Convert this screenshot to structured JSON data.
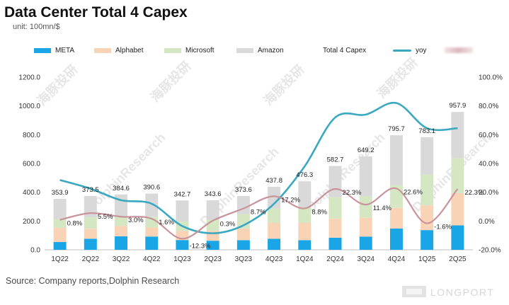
{
  "title": "Data Center Total 4 Capex",
  "unit": "unit: 100mn/$",
  "source": "Source: Company reports,Dolphin Research",
  "watermark": "DolphinResearch",
  "watermark_cn": "海豚投研",
  "footer_brand": "LONGPORT",
  "legend": [
    {
      "label": "META",
      "kind": "bar",
      "color": "#1aa6e6"
    },
    {
      "label": "Alphabet",
      "kind": "bar",
      "color": "#f9d3b6"
    },
    {
      "label": "Microsoft",
      "kind": "bar",
      "color": "#d5e6c3"
    },
    {
      "label": "Amazon",
      "kind": "bar",
      "color": "#d9d9d9"
    },
    {
      "label": "Total 4 Capex",
      "kind": "none",
      "color": "#ffffff"
    },
    {
      "label": "yoy",
      "kind": "line",
      "color": "#3aa8c1"
    },
    {
      "label": "",
      "kind": "blurred",
      "color": "#c9939c"
    }
  ],
  "chart_data": {
    "type": "bar",
    "stacked": true,
    "categories": [
      "1Q22",
      "2Q22",
      "3Q22",
      "4Q22",
      "1Q23",
      "2Q23",
      "3Q23",
      "4Q23",
      "1Q24",
      "2Q24",
      "3Q24",
      "4Q24",
      "1Q25",
      "2Q25"
    ],
    "series": [
      {
        "name": "META",
        "color": "#1aa6e6",
        "values": [
          54,
          77,
          94,
          92,
          68,
          63,
          67,
          77,
          67,
          84,
          92,
          148,
          137,
          170
        ]
      },
      {
        "name": "Alphabet",
        "color": "#f9d3b6",
        "values": [
          98,
          69,
          72,
          63,
          63,
          69,
          81,
          110,
          120,
          132,
          131,
          143,
          172,
          224
        ]
      },
      {
        "name": "Microsoft",
        "color": "#d5e6c3",
        "values": [
          60,
          80,
          70,
          75,
          65,
          77,
          100,
          99,
          109,
          150,
          149,
          158,
          213,
          242
        ]
      },
      {
        "name": "Amazon",
        "color": "#d9d9d9",
        "values": [
          142,
          148,
          149,
          161,
          147,
          135,
          126,
          152,
          180,
          217,
          277,
          347,
          261,
          322
        ]
      }
    ],
    "totals": {
      "name": "Total 4 Capex",
      "values": [
        353.9,
        373.5,
        384.6,
        390.6,
        342.7,
        343.6,
        373.6,
        437.8,
        476.3,
        582.7,
        649.2,
        795.7,
        783.1,
        957.9
      ]
    },
    "yoy_line": {
      "name": "yoy",
      "color": "#3aa8c1",
      "values": [
        28.5,
        22.5,
        14.5,
        12.0,
        -3.5,
        -8.5,
        -3.0,
        12.0,
        38.0,
        72.0,
        74.0,
        82.0,
        64.5,
        64.5
      ]
    },
    "second_line": {
      "color": "#c9939c",
      "values": [
        0.8,
        5.5,
        3.0,
        1.6,
        -12.3,
        0.3,
        8.7,
        17.2,
        8.8,
        22.3,
        11.4,
        22.6,
        -1.6,
        22.3
      ],
      "labels": [
        "0.8%",
        "5.5%",
        "3.0%",
        "1.6%",
        "-12.3%",
        "0.3%",
        "8.7%",
        "17.2%",
        "8.8%",
        "22.3%",
        "11.4%",
        "22.6%",
        "-1.6%",
        "22.3%"
      ]
    },
    "ylim_left": [
      0,
      1200
    ],
    "ylim_right": [
      -20,
      100
    ],
    "yticks_left": [
      "0.0",
      "200.0",
      "400.0",
      "600.0",
      "800.0",
      "1000.0",
      "1200.0"
    ],
    "yticks_right": [
      "-20.0%",
      "0.0%",
      "20.0%",
      "40.0%",
      "60.0%",
      "80.0%",
      "100.0%"
    ],
    "grid": false,
    "legend_position": "top"
  }
}
